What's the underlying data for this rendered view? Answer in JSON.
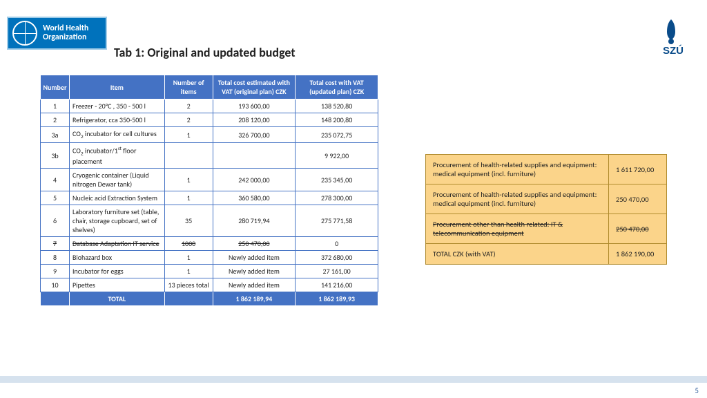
{
  "header": {
    "who_line1": "World Health",
    "who_line2": "Organization",
    "title": "Tab 1: Original and updated budget",
    "szu_label": "SZÚ"
  },
  "table": {
    "headers": [
      "Number",
      "Item",
      "Number of items",
      "Total cost estimated with VAT (original plan) CZK",
      "Total cost with VAT (updated plan) CZK"
    ],
    "rows": [
      {
        "n": "1",
        "item": "Freezer - 20°C , 350 - 500 l",
        "qty": "2",
        "orig": "193 600,00",
        "upd": "138 520,80",
        "strike": false
      },
      {
        "n": "2",
        "item": "Refrigerator, cca 350-500 l",
        "qty": "2",
        "orig": "208 120,00",
        "upd": "148 200,80",
        "strike": false
      },
      {
        "n": "3a",
        "item": "CO₂ incubator for cell cultures",
        "qty": "1",
        "orig": "326 700,00",
        "upd": "235 072,75",
        "strike": false
      },
      {
        "n": "3b",
        "item": "CO₂ incubator/1ˢᵗ floor placement",
        "qty": "",
        "orig": "",
        "upd": "9 922,00",
        "strike": false
      },
      {
        "n": "4",
        "item": "Cryogenic container (Liquid nitrogen Dewar tank)",
        "qty": "1",
        "orig": "242 000,00",
        "upd": "235 345,00",
        "strike": false
      },
      {
        "n": "5",
        "item": "Nucleic acid  Extraction System",
        "qty": "1",
        "orig": "360 580,00",
        "upd": "278 300,00",
        "strike": false
      },
      {
        "n": "6",
        "item": "Laboratory furniture set (table, chair, storage cupboard, set of shelves)",
        "qty": "35",
        "orig": "280 719,94",
        "upd": "275 771,58",
        "strike": false
      },
      {
        "n": "7",
        "item": "Database Adaptation IT service",
        "qty": "1000",
        "orig": "250 470,00",
        "upd": "0",
        "strike": true
      },
      {
        "n": "8",
        "item": "Biohazard box",
        "qty": "1",
        "orig": "Newly added item",
        "upd": "372 680,00",
        "strike": false
      },
      {
        "n": "9",
        "item": "Incubator for eggs",
        "qty": "1",
        "orig": "Newly added item",
        "upd": "27 161,00",
        "strike": false
      },
      {
        "n": "10",
        "item": "Pipettes",
        "qty": "13 pieces total",
        "orig": "Newly added item",
        "upd": "141 216,00",
        "strike": false
      }
    ],
    "total": {
      "label": "TOTAL",
      "orig": "1 862 189,94",
      "upd": "1 862 189,93"
    }
  },
  "summary": {
    "rows": [
      {
        "label": "Procurement of health-related supplies and equipment: medical equipment (incl. furniture)",
        "value": "1 611 720,00",
        "strike": false
      },
      {
        "label": "Procurement of health-related supplies and equipment: medical equipment (incl. furniture)",
        "value": "250 470,00",
        "strike": false
      },
      {
        "label": "Procurement other than health related: IT & telecommunication equipment",
        "value": "250 470,00",
        "strike": true
      },
      {
        "label": "TOTAL CZK (with VAT)",
        "value": "1 862 190,00",
        "strike": false
      }
    ]
  },
  "page_number": "5",
  "colors": {
    "header_blue": "#4472c4",
    "who_blue": "#0072bc",
    "summary_bg": "#fbd48a",
    "summary_border": "#b08b2e",
    "footer_bar": "#d6e2ee",
    "szu_blue": "#0a4c8a"
  }
}
